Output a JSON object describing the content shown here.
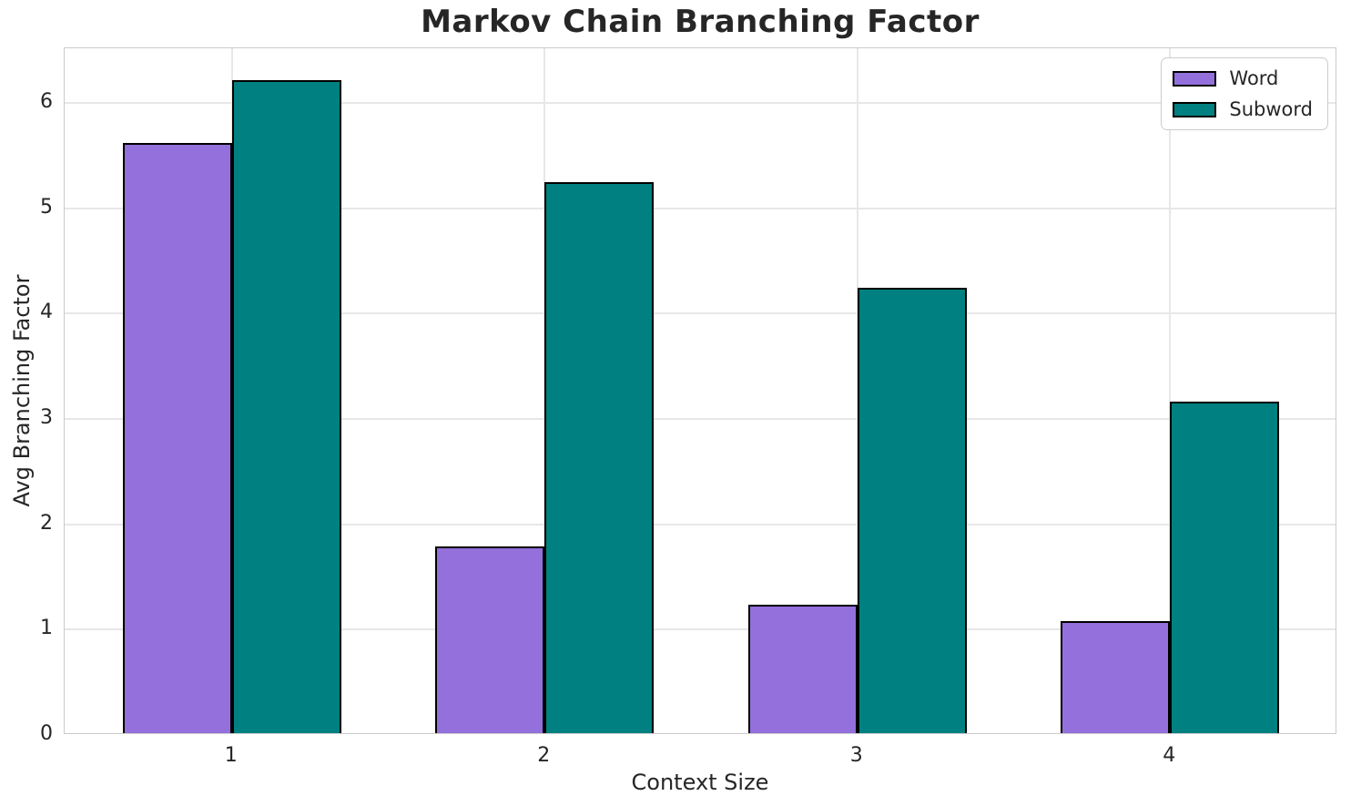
{
  "chart_data": {
    "type": "bar",
    "title": "Markov Chain Branching Factor",
    "xlabel": "Context Size",
    "ylabel": "Avg Branching Factor",
    "categories": [
      "1",
      "2",
      "3",
      "4"
    ],
    "series": [
      {
        "name": "Word",
        "color": "#9370DB",
        "values": [
          5.6,
          1.77,
          1.22,
          1.06
        ]
      },
      {
        "name": "Subword",
        "color": "#008080",
        "values": [
          6.2,
          5.23,
          4.23,
          3.15
        ]
      }
    ],
    "bar_edge_color": "#000000",
    "bar_group_width": 0.7,
    "xlim": [
      0.465,
      4.535
    ],
    "ylim": [
      0,
      6.52
    ],
    "yticks": [
      "0",
      "1",
      "2",
      "3",
      "4",
      "5",
      "6"
    ],
    "grid": true,
    "legend_position": "upper right"
  },
  "colors": {
    "background": "#ffffff",
    "grid": "#e7e7e7",
    "spine": "#cbcbcb",
    "text": "#262626"
  }
}
